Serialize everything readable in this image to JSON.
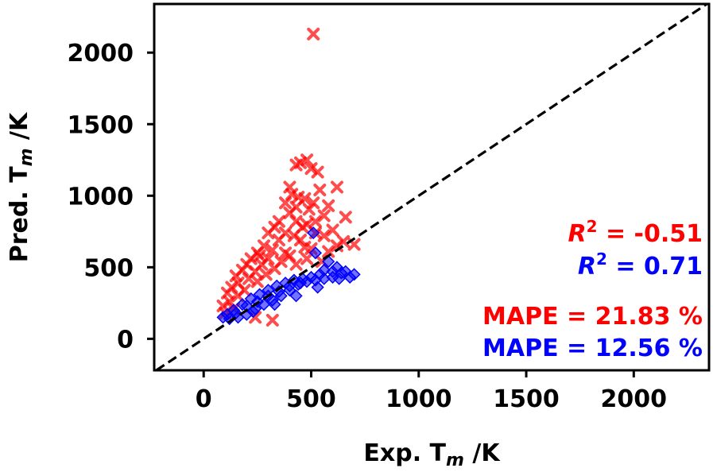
{
  "chart_data": {
    "type": "scatter",
    "title": "",
    "xlabel": "Exp. T",
    "xlabel_sub": "m",
    "xlabel_unit": " /K",
    "ylabel": "Pred. T",
    "ylabel_sub": "m",
    "ylabel_unit": " /K",
    "xlim": [
      -230,
      2350
    ],
    "ylim": [
      -220,
      2340
    ],
    "xticks": [
      0,
      500,
      1000,
      1500,
      2000
    ],
    "yticks": [
      0,
      500,
      1000,
      1500,
      2000
    ],
    "grid": false,
    "parity_line": true,
    "series": [
      {
        "marker": "x",
        "color": "#ff0000",
        "points": [
          [
            510,
            2130
          ],
          [
            480,
            1250
          ],
          [
            450,
            1230
          ],
          [
            430,
            1215
          ],
          [
            500,
            1190
          ],
          [
            530,
            1165
          ],
          [
            400,
            1060
          ],
          [
            620,
            1060
          ],
          [
            540,
            1040
          ],
          [
            410,
            1010
          ],
          [
            440,
            990
          ],
          [
            470,
            980
          ],
          [
            380,
            950
          ],
          [
            510,
            950
          ],
          [
            580,
            930
          ],
          [
            430,
            920
          ],
          [
            490,
            905
          ],
          [
            660,
            850
          ],
          [
            400,
            880
          ],
          [
            560,
            860
          ],
          [
            350,
            820
          ],
          [
            430,
            820
          ],
          [
            520,
            820
          ],
          [
            480,
            800
          ],
          [
            330,
            780
          ],
          [
            460,
            780
          ],
          [
            600,
            760
          ],
          [
            300,
            740
          ],
          [
            380,
            740
          ],
          [
            520,
            740
          ],
          [
            420,
            720
          ],
          [
            560,
            720
          ],
          [
            700,
            660
          ],
          [
            650,
            680
          ],
          [
            280,
            650
          ],
          [
            350,
            690
          ],
          [
            450,
            690
          ],
          [
            620,
            650
          ],
          [
            250,
            600
          ],
          [
            320,
            620
          ],
          [
            500,
            630
          ],
          [
            580,
            610
          ],
          [
            220,
            560
          ],
          [
            300,
            560
          ],
          [
            400,
            580
          ],
          [
            480,
            560
          ],
          [
            550,
            540
          ],
          [
            200,
            520
          ],
          [
            270,
            520
          ],
          [
            360,
            540
          ],
          [
            430,
            520
          ],
          [
            180,
            480
          ],
          [
            240,
            470
          ],
          [
            330,
            490
          ],
          [
            150,
            440
          ],
          [
            210,
            420
          ],
          [
            290,
            450
          ],
          [
            160,
            390
          ],
          [
            250,
            400
          ],
          [
            130,
            360
          ],
          [
            190,
            340
          ],
          [
            110,
            320
          ],
          [
            160,
            300
          ],
          [
            120,
            260
          ],
          [
            90,
            230
          ],
          [
            140,
            210
          ],
          [
            100,
            180
          ],
          [
            320,
            130
          ],
          [
            240,
            150
          ],
          [
            380,
            600
          ],
          [
            470,
            640
          ],
          [
            260,
            580
          ]
        ]
      },
      {
        "marker": "diamond",
        "color": "#0000ff",
        "points": [
          [
            510,
            740
          ],
          [
            520,
            600
          ],
          [
            580,
            540
          ],
          [
            620,
            500
          ],
          [
            660,
            470
          ],
          [
            700,
            450
          ],
          [
            680,
            430
          ],
          [
            640,
            460
          ],
          [
            600,
            470
          ],
          [
            560,
            480
          ],
          [
            540,
            450
          ],
          [
            500,
            430
          ],
          [
            460,
            420
          ],
          [
            420,
            410
          ],
          [
            380,
            390
          ],
          [
            340,
            370
          ],
          [
            300,
            340
          ],
          [
            260,
            310
          ],
          [
            220,
            280
          ],
          [
            180,
            240
          ],
          [
            140,
            200
          ],
          [
            110,
            170
          ],
          [
            90,
            150
          ],
          [
            120,
            140
          ],
          [
            160,
            150
          ],
          [
            200,
            170
          ],
          [
            240,
            210
          ],
          [
            280,
            240
          ],
          [
            320,
            270
          ],
          [
            360,
            300
          ],
          [
            400,
            340
          ],
          [
            440,
            380
          ],
          [
            480,
            400
          ],
          [
            520,
            410
          ],
          [
            560,
            420
          ],
          [
            600,
            430
          ],
          [
            200,
            230
          ],
          [
            250,
            260
          ],
          [
            300,
            300
          ],
          [
            350,
            330
          ],
          [
            400,
            370
          ],
          [
            450,
            390
          ],
          [
            150,
            180
          ],
          [
            230,
            190
          ],
          [
            330,
            240
          ],
          [
            430,
            300
          ],
          [
            530,
            360
          ],
          [
            630,
            420
          ]
        ]
      }
    ],
    "annotations": [
      {
        "label": "R",
        "sup": "2",
        "text": " = -0.51",
        "color": "#ff0000"
      },
      {
        "label": "R",
        "sup": "2",
        "text": " = 0.71",
        "color": "#0000ff"
      },
      {
        "text": "MAPE = 21.83 %",
        "color": "#ff0000"
      },
      {
        "text": "MAPE = 12.56 %",
        "color": "#0000ff"
      }
    ]
  }
}
